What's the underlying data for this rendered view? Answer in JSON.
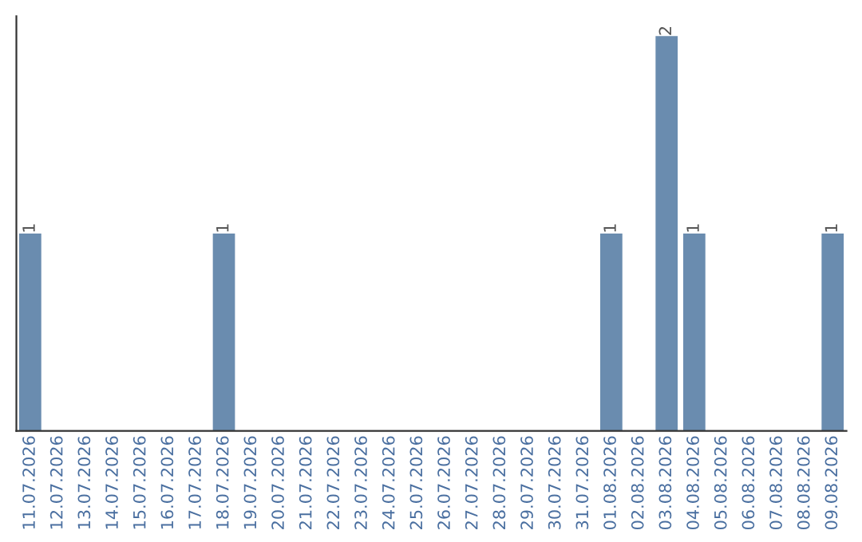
{
  "chart_data": {
    "type": "bar",
    "categories": [
      "11.07.2026",
      "12.07.2026",
      "13.07.2026",
      "14.07.2026",
      "15.07.2026",
      "16.07.2026",
      "17.07.2026",
      "18.07.2026",
      "19.07.2026",
      "20.07.2026",
      "21.07.2026",
      "22.07.2026",
      "23.07.2026",
      "24.07.2026",
      "25.07.2026",
      "26.07.2026",
      "27.07.2026",
      "28.07.2026",
      "29.07.2026",
      "30.07.2026",
      "31.07.2026",
      "01.08.2026",
      "02.08.2026",
      "03.08.2026",
      "04.08.2026",
      "05.08.2026",
      "06.08.2026",
      "07.08.2026",
      "08.08.2026",
      "09.08.2026"
    ],
    "values": [
      1,
      0,
      0,
      0,
      0,
      0,
      0,
      1,
      0,
      0,
      0,
      0,
      0,
      0,
      0,
      0,
      0,
      0,
      0,
      0,
      0,
      1,
      0,
      2,
      1,
      0,
      0,
      0,
      0,
      1
    ],
    "value_labels": [
      "1",
      null,
      null,
      null,
      null,
      null,
      null,
      "1",
      null,
      null,
      null,
      null,
      null,
      null,
      null,
      null,
      null,
      null,
      null,
      null,
      null,
      "1",
      null,
      "2",
      "1",
      null,
      null,
      null,
      null,
      "1"
    ],
    "color": "#6a8caf",
    "grid": false,
    "legend": false,
    "tick_labels": "x"
  }
}
